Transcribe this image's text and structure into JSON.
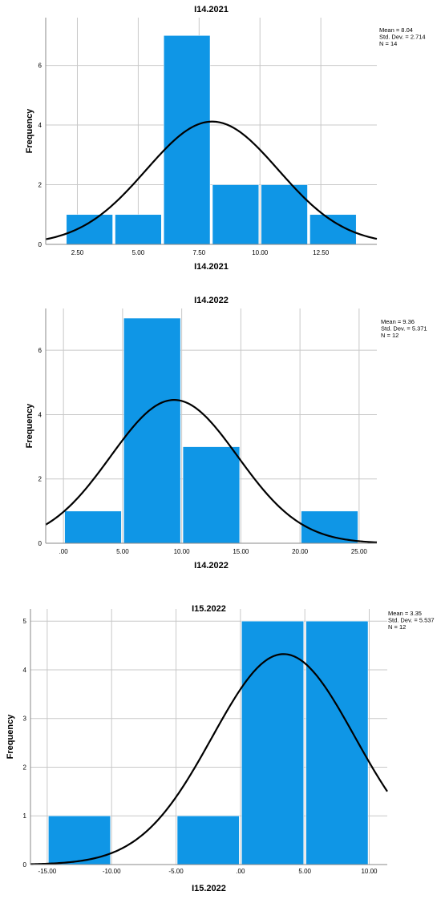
{
  "chart_data": [
    {
      "type": "bar",
      "title": "I14.2021",
      "xlabel": "I14.2021",
      "ylabel": "Frequency",
      "stats": [
        "Mean = 8.04",
        "Std. Dev. = 2.714",
        "N = 14"
      ],
      "bins": [
        {
          "from": 2,
          "to": 4,
          "count": 1
        },
        {
          "from": 4,
          "to": 6,
          "count": 1
        },
        {
          "from": 6,
          "to": 8,
          "count": 7
        },
        {
          "from": 8,
          "to": 10,
          "count": 2
        },
        {
          "from": 10,
          "to": 12,
          "count": 2
        },
        {
          "from": 12,
          "to": 14,
          "count": 1
        }
      ],
      "normal_curve": {
        "mean": 8.04,
        "sd": 2.714,
        "n": 14,
        "bin_width": 2
      },
      "xlim": [
        1.2,
        14.8
      ],
      "ylim": [
        0,
        7.6
      ],
      "xticks": [
        {
          "v": 2.5,
          "label": "2.50"
        },
        {
          "v": 5,
          "label": "5.00"
        },
        {
          "v": 7.5,
          "label": "7.50"
        },
        {
          "v": 10,
          "label": "10.00"
        },
        {
          "v": 12.5,
          "label": "12.50"
        }
      ],
      "yticks": [
        {
          "v": 0,
          "label": "0"
        },
        {
          "v": 2,
          "label": "2"
        },
        {
          "v": 4,
          "label": "4"
        },
        {
          "v": 6,
          "label": "6"
        }
      ],
      "grid": true,
      "bar_color": "#0f96e6"
    },
    {
      "type": "bar",
      "title": "I14.2022",
      "xlabel": "I14.2022",
      "ylabel": "Frequency",
      "stats": [
        "Mean = 9.36",
        "Std. Dev. = 5.371",
        "N = 12"
      ],
      "bins": [
        {
          "from": 0,
          "to": 5,
          "count": 1
        },
        {
          "from": 5,
          "to": 10,
          "count": 7
        },
        {
          "from": 10,
          "to": 15,
          "count": 3
        },
        {
          "from": 15,
          "to": 20,
          "count": 0
        },
        {
          "from": 20,
          "to": 25,
          "count": 1
        }
      ],
      "normal_curve": {
        "mean": 9.36,
        "sd": 5.371,
        "n": 12,
        "bin_width": 5
      },
      "xlim": [
        -1.5,
        26.5
      ],
      "ylim": [
        0,
        7.3
      ],
      "xticks": [
        {
          "v": 0,
          "label": ".00"
        },
        {
          "v": 5,
          "label": "5.00"
        },
        {
          "v": 10,
          "label": "10.00"
        },
        {
          "v": 15,
          "label": "15.00"
        },
        {
          "v": 20,
          "label": "20.00"
        },
        {
          "v": 25,
          "label": "25.00"
        }
      ],
      "yticks": [
        {
          "v": 0,
          "label": "0"
        },
        {
          "v": 2,
          "label": "2"
        },
        {
          "v": 4,
          "label": "4"
        },
        {
          "v": 6,
          "label": "6"
        }
      ],
      "grid": true,
      "bar_color": "#0f96e6"
    },
    {
      "type": "bar",
      "title": "I15.2022",
      "xlabel": "I15.2022",
      "ylabel": "Frequency",
      "stats": [
        "Mean = 3.35",
        "Std. Dev. = 5.537",
        "N = 12"
      ],
      "bins": [
        {
          "from": -15,
          "to": -10,
          "count": 1
        },
        {
          "from": -10,
          "to": -5,
          "count": 0
        },
        {
          "from": -5,
          "to": 0,
          "count": 1
        },
        {
          "from": 0,
          "to": 5,
          "count": 5
        },
        {
          "from": 5,
          "to": 10,
          "count": 5
        }
      ],
      "normal_curve": {
        "mean": 3.35,
        "sd": 5.537,
        "n": 12,
        "bin_width": 5
      },
      "xlim": [
        -16.3,
        11.4
      ],
      "ylim": [
        0,
        5.25
      ],
      "xticks": [
        {
          "v": -15,
          "label": "-15.00"
        },
        {
          "v": -10,
          "label": "-10.00"
        },
        {
          "v": -5,
          "label": "-5.00"
        },
        {
          "v": 0,
          "label": ".00"
        },
        {
          "v": 5,
          "label": "5.00"
        },
        {
          "v": 10,
          "label": "10.00"
        }
      ],
      "yticks": [
        {
          "v": 0,
          "label": "0"
        },
        {
          "v": 1,
          "label": "1"
        },
        {
          "v": 2,
          "label": "2"
        },
        {
          "v": 3,
          "label": "3"
        },
        {
          "v": 4,
          "label": "4"
        },
        {
          "v": 5,
          "label": "5"
        }
      ],
      "grid": true,
      "bar_color": "#0f96e6"
    }
  ]
}
